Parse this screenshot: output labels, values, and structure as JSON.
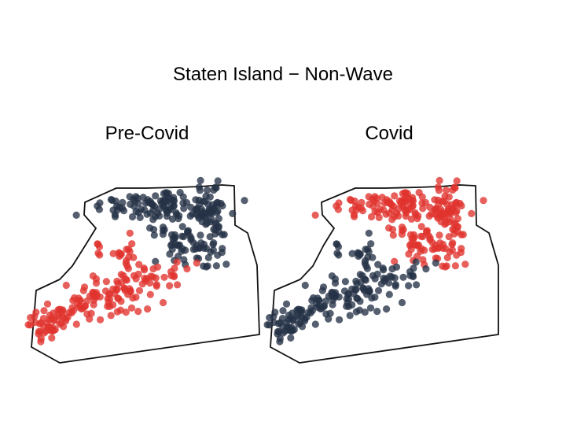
{
  "title": "Staten Island − Non-Wave",
  "panels": [
    {
      "id": "pre",
      "title": "Pre-Covid"
    },
    {
      "id": "covid",
      "title": "Covid"
    }
  ],
  "colors": {
    "red": "#e0332e",
    "navy": "#253246",
    "outline": "#111111"
  },
  "map_type": "point map of Staten Island, two panels",
  "clusters": {
    "north_shore_navy_in_precovid_red_in_covid": "north and east shore",
    "south_shore_red_in_precovid_navy_in_covid": "south shore"
  }
}
